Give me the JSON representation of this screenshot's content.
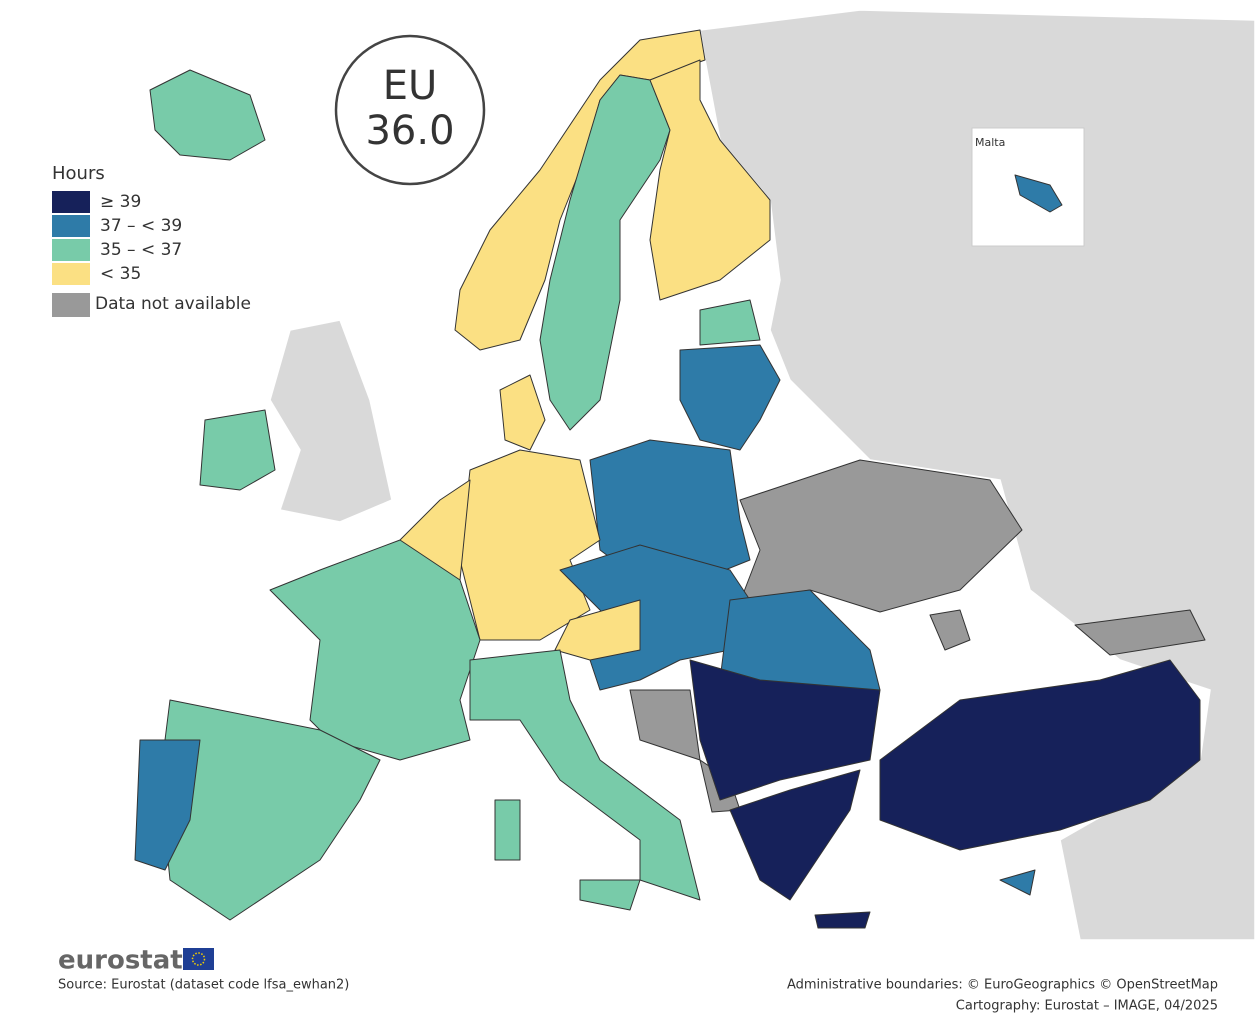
{
  "badge": {
    "label": "EU",
    "value": "36.0"
  },
  "legend": {
    "title": "Hours",
    "items": [
      {
        "label": "≥ 39",
        "color": "#16215a"
      },
      {
        "label": "37 – < 39",
        "color": "#2e7ba8"
      },
      {
        "label": "35 – < 37",
        "color": "#78cba9"
      },
      {
        "label": "< 35",
        "color": "#fbe083"
      }
    ],
    "na": {
      "label": "Data not available",
      "color": "#999999"
    }
  },
  "inset": {
    "label": "Malta"
  },
  "footer": {
    "logo": "eurostat",
    "source": "Source: Eurostat (dataset code lfsa_ewhan2)",
    "credits": [
      "Administrative boundaries: © EuroGeographics © OpenStreetMap",
      "Cartography: Eurostat – IMAGE, 04/2025"
    ]
  }
}
